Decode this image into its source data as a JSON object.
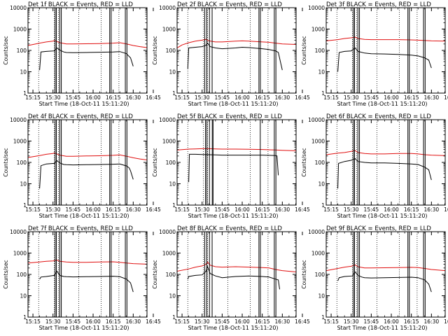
{
  "figure": {
    "ylabel": "Counts/sec",
    "xlabel_prefix": "Start Time (18-Oct-11 15:11:20)",
    "colors": {
      "events": "#000000",
      "lld": "#e01010",
      "axes": "#000000"
    }
  },
  "chart_data": [
    {
      "type": "line",
      "title": "Det 1f BLACK = Events, RED = LLD",
      "xlabel": "Start Time (18-Oct-11 15:11:20)",
      "ylabel": "Counts/sec",
      "yscale": "log",
      "ylim": [
        1,
        10000
      ],
      "xticks": [
        "15:15",
        "15:30",
        "15:45",
        "16:00",
        "16:15",
        "16:30",
        "16:45"
      ],
      "xlim_min": [
        11.3,
        100.3
      ],
      "series": [
        {
          "name": "Events",
          "x": [
            20,
            21,
            25,
            31,
            33,
            35,
            38,
            40,
            45,
            55,
            65,
            75,
            80,
            85,
            86,
            88,
            90
          ],
          "y": [
            12,
            85,
            90,
            95,
            130,
            105,
            85,
            80,
            78,
            80,
            82,
            85,
            88,
            70,
            60,
            45,
            18
          ]
        },
        {
          "name": "LLD",
          "x": [
            11.3,
            20,
            25,
            30,
            31,
            33,
            35,
            40,
            45,
            55,
            65,
            75,
            80,
            85,
            90,
            95,
            100.3
          ],
          "y": [
            170,
            220,
            250,
            270,
            290,
            260,
            230,
            200,
            200,
            205,
            210,
            220,
            230,
            200,
            170,
            150,
            135
          ]
        }
      ],
      "vlines_solid_min": [
        31.6,
        32.5,
        35.0,
        36.2,
        72.4,
        73.5,
        84.1,
        85.3
      ],
      "vlines_dotted_min": [
        19.3,
        31.0,
        34.0,
        49.3,
        66.0,
        79.3
      ]
    },
    {
      "type": "line",
      "title": "Det 2f BLACK = Events, RED = LLD",
      "xlabel": "Start Time (18-Oct-11 15:11:20)",
      "ylabel": "Counts/sec",
      "yscale": "log",
      "ylim": [
        1,
        10000
      ],
      "xticks": [
        "15:15",
        "15:30",
        "15:45",
        "16:00",
        "16:15",
        "16:30",
        "16:45"
      ],
      "xlim_min": [
        11.3,
        100.3
      ],
      "series": [
        {
          "name": "Events",
          "x": [
            19.3,
            20,
            25,
            30,
            33,
            34,
            36,
            40,
            45,
            55,
            60,
            65,
            75,
            80,
            85,
            87,
            90
          ],
          "y": [
            14,
            130,
            140,
            150,
            175,
            220,
            150,
            130,
            120,
            130,
            140,
            135,
            120,
            110,
            95,
            80,
            12
          ]
        },
        {
          "name": "LLD",
          "x": [
            11.3,
            15,
            20,
            25,
            30,
            33,
            35,
            40,
            45,
            55,
            60,
            65,
            75,
            80,
            85,
            90,
            100.3
          ],
          "y": [
            130,
            180,
            230,
            270,
            300,
            330,
            280,
            250,
            250,
            270,
            280,
            270,
            250,
            240,
            220,
            200,
            190
          ]
        }
      ],
      "vlines_solid_min": [
        32.0,
        33.5,
        35.5,
        37.5,
        72.5,
        73.6,
        84.0,
        85.2
      ],
      "vlines_dotted_min": [
        19.3,
        31.0,
        34.0,
        49.3,
        66.0,
        79.3
      ]
    },
    {
      "type": "line",
      "title": "Det 3f BLACK = Events, RED = LLD",
      "xlabel": "Start Time (18-Oct-11 15:11:20)",
      "ylabel": "Counts/sec",
      "yscale": "log",
      "ylim": [
        1,
        10000
      ],
      "xticks": [
        "15:15",
        "15:30",
        "15:45",
        "16:00",
        "16:15",
        "16:30",
        "16:45"
      ],
      "xlim_min": [
        11.3,
        100.3
      ],
      "series": [
        {
          "name": "Events",
          "x": [
            20,
            21,
            25,
            30,
            33,
            35,
            40,
            45,
            55,
            65,
            75,
            80,
            85,
            88,
            90
          ],
          "y": [
            10,
            80,
            90,
            95,
            130,
            90,
            75,
            70,
            68,
            65,
            60,
            55,
            45,
            35,
            15
          ]
        },
        {
          "name": "LLD",
          "x": [
            11.3,
            20,
            25,
            30,
            33,
            35,
            40,
            45,
            55,
            65,
            75,
            80,
            85,
            90,
            100.3
          ],
          "y": [
            280,
            320,
            360,
            390,
            420,
            360,
            330,
            320,
            320,
            320,
            310,
            300,
            290,
            280,
            270
          ]
        }
      ],
      "vlines_solid_min": [
        31.6,
        32.5,
        35.0,
        36.2,
        72.4,
        73.5,
        84.1,
        85.3
      ],
      "vlines_dotted_min": [
        19.3,
        31.0,
        34.0,
        49.3,
        66.0,
        79.3
      ]
    },
    {
      "type": "line",
      "title": "Det 4f BLACK = Events, RED = LLD",
      "xlabel": "Start Time (18-Oct-11 15:11:20)",
      "ylabel": "Counts/sec",
      "yscale": "log",
      "ylim": [
        1,
        10000
      ],
      "xticks": [
        "15:15",
        "15:30",
        "15:45",
        "16:00",
        "16:15",
        "16:30",
        "16:45"
      ],
      "xlim_min": [
        11.3,
        100.3
      ],
      "series": [
        {
          "name": "Events",
          "x": [
            20,
            21,
            25,
            31,
            33,
            35,
            38,
            40,
            45,
            55,
            65,
            75,
            80,
            85,
            87,
            88,
            90
          ],
          "y": [
            6,
            70,
            85,
            90,
            120,
            95,
            80,
            78,
            76,
            78,
            80,
            82,
            84,
            68,
            55,
            40,
            16
          ]
        },
        {
          "name": "LLD",
          "x": [
            11.3,
            20,
            25,
            30,
            31,
            33,
            35,
            40,
            45,
            55,
            65,
            75,
            80,
            85,
            90,
            95,
            100.3
          ],
          "y": [
            170,
            210,
            240,
            260,
            280,
            250,
            220,
            195,
            195,
            200,
            205,
            215,
            225,
            195,
            165,
            145,
            130
          ]
        }
      ],
      "vlines_solid_min": [
        31.6,
        32.5,
        35.0,
        36.2,
        72.4,
        73.5,
        84.1,
        85.3
      ],
      "vlines_dotted_min": [
        19.3,
        31.0,
        34.0,
        49.3,
        66.0,
        79.3
      ]
    },
    {
      "type": "line",
      "title": "Det 5f BLACK = Events, RED = LLD",
      "xlabel": "Start Time (18-Oct-11 15:11:20)",
      "ylabel": "Counts/sec",
      "yscale": "log",
      "ylim": [
        1,
        10000
      ],
      "xticks": [
        "15:15",
        "15:30",
        "15:45",
        "16:00",
        "16:15",
        "16:30",
        "16:45"
      ],
      "xlim_min": [
        11.3,
        100.3
      ],
      "series": [
        {
          "name": "Events",
          "x": [
            20,
            20.5,
            25,
            30,
            35,
            40,
            45,
            55,
            65,
            75,
            80,
            85,
            86,
            87
          ],
          "y": [
            12,
            240,
            240,
            235,
            230,
            225,
            220,
            220,
            220,
            220,
            215,
            210,
            200,
            25
          ]
        },
        {
          "name": "LLD",
          "x": [
            11.3,
            20,
            25,
            30,
            35,
            40,
            45,
            55,
            65,
            75,
            80,
            85,
            90,
            100.3
          ],
          "y": [
            380,
            420,
            430,
            440,
            440,
            430,
            420,
            420,
            410,
            400,
            390,
            380,
            370,
            350
          ]
        }
      ],
      "vlines_solid_min": [
        32.5,
        33.6,
        35.5,
        37.6,
        38.2,
        73.5,
        84.0,
        85.2
      ],
      "vlines_dotted_min": [
        19.3,
        31.0,
        34.0,
        49.3,
        66.0,
        79.3
      ]
    },
    {
      "type": "line",
      "title": "Det 6f BLACK = Events, RED = LLD",
      "xlabel": "Start Time (18-Oct-11 15:11:20)",
      "ylabel": "Counts/sec",
      "yscale": "log",
      "ylim": [
        1,
        10000
      ],
      "xticks": [
        "15:15",
        "15:30",
        "15:45",
        "16:00",
        "16:15",
        "16:30",
        "16:45"
      ],
      "xlim_min": [
        11.3,
        100.3
      ],
      "series": [
        {
          "name": "Events",
          "x": [
            20,
            20.5,
            25,
            30,
            33,
            35,
            40,
            45,
            55,
            65,
            75,
            80,
            85,
            88,
            90
          ],
          "y": [
            6,
            90,
            110,
            125,
            150,
            110,
            100,
            95,
            95,
            90,
            85,
            80,
            60,
            45,
            15
          ]
        },
        {
          "name": "LLD",
          "x": [
            11.3,
            20,
            25,
            30,
            33,
            35,
            40,
            45,
            55,
            65,
            75,
            80,
            85,
            90,
            100.3
          ],
          "y": [
            230,
            270,
            290,
            330,
            360,
            290,
            260,
            250,
            250,
            260,
            260,
            250,
            230,
            220,
            210
          ]
        }
      ],
      "vlines_solid_min": [
        31.6,
        32.5,
        35.0,
        36.2,
        72.4,
        73.5,
        84.1,
        85.3
      ],
      "vlines_dotted_min": [
        19.3,
        31.0,
        34.0,
        49.3,
        66.0,
        79.3
      ]
    },
    {
      "type": "line",
      "title": "Det 7f BLACK = Events, RED = LLD",
      "xlabel": "Start Time (18-Oct-11 15:11:20)",
      "ylabel": "Counts/sec",
      "yscale": "log",
      "ylim": [
        1,
        10000
      ],
      "xticks": [
        "15:15",
        "15:30",
        "15:45",
        "16:00",
        "16:15",
        "16:30",
        "16:45"
      ],
      "xlim_min": [
        11.3,
        100.3
      ],
      "series": [
        {
          "name": "Events",
          "x": [
            20,
            21,
            25,
            31,
            33,
            35,
            38,
            40,
            45,
            55,
            65,
            75,
            80,
            85,
            88,
            90
          ],
          "y": [
            60,
            75,
            80,
            90,
            140,
            90,
            80,
            78,
            76,
            78,
            80,
            82,
            78,
            60,
            40,
            15
          ]
        },
        {
          "name": "LLD",
          "x": [
            11.3,
            20,
            25,
            30,
            33,
            35,
            40,
            45,
            55,
            65,
            75,
            80,
            85,
            90,
            100.3
          ],
          "y": [
            340,
            380,
            410,
            430,
            470,
            410,
            380,
            370,
            370,
            380,
            390,
            370,
            340,
            320,
            300
          ]
        }
      ],
      "vlines_solid_min": [
        31.6,
        32.5,
        35.0,
        36.2,
        72.4,
        73.5,
        84.1,
        85.3
      ],
      "vlines_dotted_min": [
        19.3,
        31.0,
        34.0,
        49.3,
        66.0,
        79.3
      ]
    },
    {
      "type": "line",
      "title": "Det 8f BLACK = Events, RED = LLD",
      "xlabel": "Start Time (18-Oct-11 15:11:20)",
      "ylabel": "Counts/sec",
      "yscale": "log",
      "ylim": [
        1,
        10000
      ],
      "xticks": [
        "15:15",
        "15:30",
        "15:45",
        "16:00",
        "16:15",
        "16:30",
        "16:45"
      ],
      "xlim_min": [
        11.3,
        100.3
      ],
      "series": [
        {
          "name": "Events",
          "x": [
            19.3,
            20,
            25,
            30,
            33,
            34,
            36,
            40,
            45,
            55,
            65,
            75,
            80,
            85,
            87,
            88
          ],
          "y": [
            60,
            80,
            90,
            95,
            140,
            230,
            110,
            85,
            70,
            80,
            85,
            80,
            75,
            60,
            55,
            20
          ]
        },
        {
          "name": "LLD",
          "x": [
            11.3,
            20,
            25,
            30,
            33,
            34,
            36,
            40,
            45,
            55,
            65,
            75,
            80,
            85,
            90,
            100.3
          ],
          "y": [
            140,
            180,
            220,
            250,
            300,
            380,
            270,
            230,
            220,
            230,
            220,
            210,
            200,
            170,
            150,
            130
          ]
        }
      ],
      "vlines_solid_min": [
        32.0,
        33.5,
        35.5,
        37.5,
        72.5,
        73.6,
        84.0,
        85.2
      ],
      "vlines_dotted_min": [
        19.3,
        31.0,
        34.0,
        49.3,
        66.0,
        79.3
      ]
    },
    {
      "type": "line",
      "title": "Det 9f BLACK = Events, RED = LLD",
      "xlabel": "Start Time (18-Oct-11 15:11:20)",
      "ylabel": "Counts/sec",
      "yscale": "log",
      "ylim": [
        1,
        10000
      ],
      "xticks": [
        "15:15",
        "15:30",
        "15:45",
        "16:00",
        "16:15",
        "16:30",
        "16:45"
      ],
      "xlim_min": [
        11.3,
        100.3
      ],
      "series": [
        {
          "name": "Events",
          "x": [
            20,
            21,
            25,
            31,
            33,
            35,
            38,
            40,
            45,
            55,
            65,
            75,
            80,
            85,
            88,
            90
          ],
          "y": [
            50,
            70,
            80,
            85,
            130,
            90,
            75,
            70,
            68,
            70,
            72,
            74,
            70,
            55,
            35,
            15
          ]
        },
        {
          "name": "LLD",
          "x": [
            11.3,
            20,
            25,
            30,
            33,
            35,
            40,
            45,
            55,
            65,
            75,
            80,
            85,
            90,
            100.3
          ],
          "y": [
            150,
            190,
            220,
            240,
            280,
            230,
            200,
            200,
            205,
            210,
            215,
            210,
            190,
            170,
            150
          ]
        }
      ],
      "vlines_solid_min": [
        31.6,
        32.5,
        35.0,
        36.2,
        72.4,
        73.5,
        84.1,
        85.3
      ],
      "vlines_dotted_min": [
        19.3,
        31.0,
        34.0,
        49.3,
        66.0,
        79.3
      ]
    }
  ]
}
